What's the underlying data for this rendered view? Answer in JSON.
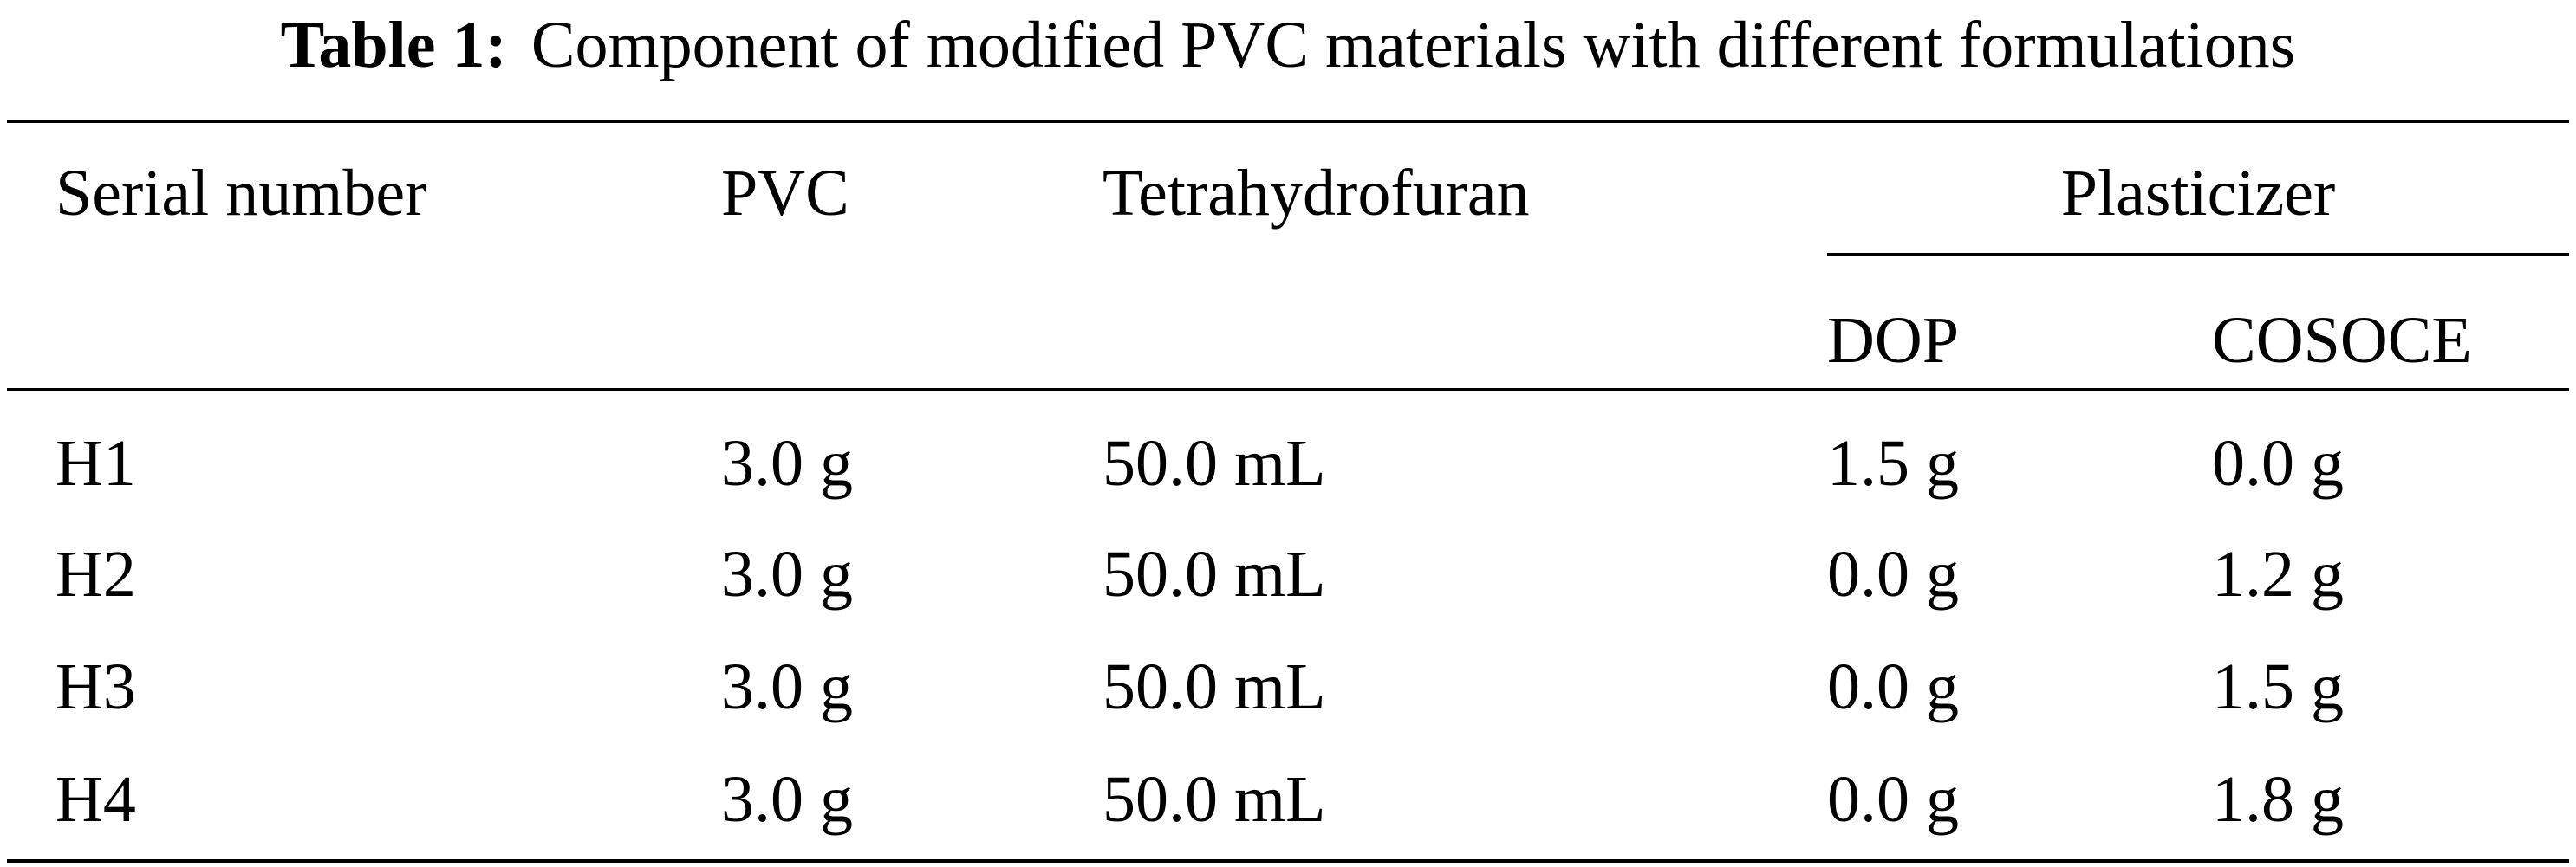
{
  "caption": {
    "label": "Table 1:",
    "text": "Component of modified PVC materials with different formulations"
  },
  "table": {
    "headers": {
      "serial": "Serial number",
      "pvc": "PVC",
      "thf": "Tetrahydrofuran",
      "plasticizer": "Plasticizer",
      "dop": "DOP",
      "cosoce": "COSOCE"
    },
    "rows": [
      {
        "serial": "H1",
        "pvc": "3.0 g",
        "thf": "50.0 mL",
        "dop": "1.5 g",
        "cosoce": "0.0 g"
      },
      {
        "serial": "H2",
        "pvc": "3.0 g",
        "thf": "50.0 mL",
        "dop": "0.0 g",
        "cosoce": "1.2 g"
      },
      {
        "serial": "H3",
        "pvc": "3.0 g",
        "thf": "50.0 mL",
        "dop": "0.0 g",
        "cosoce": "1.5 g"
      },
      {
        "serial": "H4",
        "pvc": "3.0 g",
        "thf": "50.0 mL",
        "dop": "0.0 g",
        "cosoce": "1.8 g"
      }
    ]
  }
}
